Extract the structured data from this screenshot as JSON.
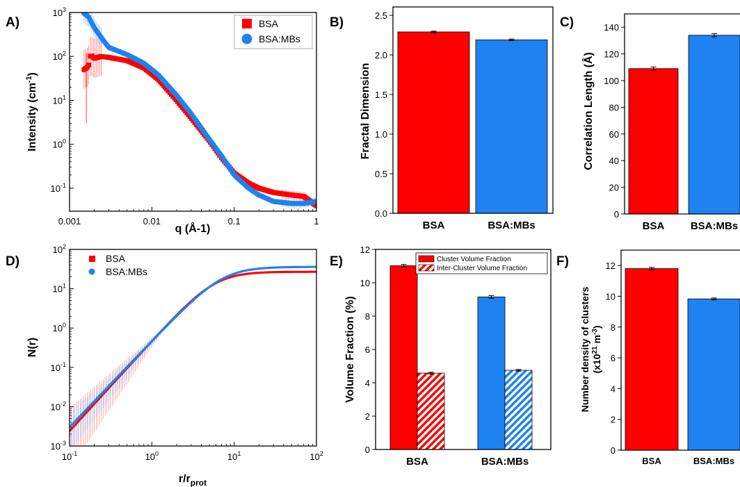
{
  "colors": {
    "bsa": "#ff0000",
    "mbs": "#1e82f0",
    "axis": "#000000"
  },
  "chart_data": [
    {
      "panel": "A)",
      "type": "scatter",
      "xlabel": "q (Å-1)",
      "ylabel_main": "Intensity (cm",
      "ylabel_sup": "-1",
      "ylabel_end": ")",
      "xscale": "log",
      "yscale": "log",
      "xlim": [
        0.001,
        1
      ],
      "ylim": [
        0.03,
        1000
      ],
      "xticks": [
        {
          "v": 0.001,
          "t": "0.001"
        },
        {
          "v": 0.01,
          "t": "0.01"
        },
        {
          "v": 0.1,
          "t": "0.1"
        },
        {
          "v": 1,
          "t": "1"
        }
      ],
      "yticks": [
        {
          "v": 0.1,
          "b": "10",
          "e": "-1"
        },
        {
          "v": 1,
          "b": "10",
          "e": "0"
        },
        {
          "v": 10,
          "b": "10",
          "e": "1"
        },
        {
          "v": 100,
          "b": "10",
          "e": "2"
        },
        {
          "v": 1000,
          "b": "10",
          "e": "3"
        }
      ],
      "legend": "top-right",
      "series": [
        {
          "name": "BSA",
          "marker": "square",
          "color": "#ff0000",
          "x": [
            0.0015,
            0.0017,
            0.0018,
            0.002,
            0.0024,
            0.003,
            0.005,
            0.008,
            0.012,
            0.02,
            0.03,
            0.05,
            0.07,
            0.1,
            0.15,
            0.2,
            0.3,
            0.5,
            0.7,
            1.0
          ],
          "y": [
            50,
            60,
            110,
            90,
            100,
            95,
            80,
            55,
            30,
            10,
            4,
            1.2,
            0.5,
            0.22,
            0.13,
            0.1,
            0.08,
            0.07,
            0.065,
            0.04
          ]
        },
        {
          "name": "BSA:MBs",
          "marker": "circle",
          "color": "#1e82f0",
          "x": [
            0.0015,
            0.0017,
            0.002,
            0.0025,
            0.003,
            0.005,
            0.008,
            0.012,
            0.02,
            0.03,
            0.05,
            0.07,
            0.1,
            0.15,
            0.2,
            0.3,
            0.5,
            0.7,
            1.0
          ],
          "y": [
            950,
            800,
            450,
            250,
            160,
            110,
            70,
            38,
            13,
            5,
            1.3,
            0.55,
            0.2,
            0.1,
            0.07,
            0.05,
            0.045,
            0.045,
            0.05
          ]
        }
      ]
    },
    {
      "panel": "B)",
      "type": "bar",
      "categories": [
        "BSA",
        "BSA:MBs"
      ],
      "values": [
        2.29,
        2.19
      ],
      "errors": [
        0.01,
        0.01
      ],
      "ylabel": "Fractal Dimension",
      "ylim": [
        0,
        2.5
      ],
      "yticks": [
        "0.0",
        "0.5",
        "1.0",
        "1.5",
        "2.0",
        "2.5"
      ]
    },
    {
      "panel": "C)",
      "type": "bar",
      "categories": [
        "BSA",
        "BSA:MBs"
      ],
      "values": [
        109,
        134
      ],
      "errors": [
        1.2,
        1.2
      ],
      "ylabel": "Correlation Length (Å)",
      "ylim": [
        0,
        150
      ],
      "yticks": [
        "0",
        "20",
        "40",
        "60",
        "80",
        "100",
        "120",
        "140"
      ]
    },
    {
      "panel": "D)",
      "type": "line",
      "xlabel_main": "r/r",
      "xlabel_sub": "prot",
      "ylabel": "N(r)",
      "xscale": "log",
      "yscale": "log",
      "xlim": [
        0.1,
        100
      ],
      "ylim": [
        0.001,
        100
      ],
      "xticks": [
        {
          "v": 0.1,
          "b": "10",
          "e": "-1"
        },
        {
          "v": 1,
          "b": "10",
          "e": "0"
        },
        {
          "v": 10,
          "b": "10",
          "e": "1"
        },
        {
          "v": 100,
          "b": "10",
          "e": "2"
        }
      ],
      "yticks": [
        {
          "v": 0.001,
          "b": "10",
          "e": "-3"
        },
        {
          "v": 0.01,
          "b": "10",
          "e": "-2"
        },
        {
          "v": 0.1,
          "b": "10",
          "e": "-1"
        },
        {
          "v": 1,
          "b": "10",
          "e": "0"
        },
        {
          "v": 10,
          "b": "10",
          "e": "1"
        },
        {
          "v": 100,
          "b": "10",
          "e": "2"
        }
      ],
      "legend": "top-left",
      "series": [
        {
          "name": "BSA",
          "color": "#ff0000",
          "plateau": 27,
          "ndim": 2.29,
          "rc": 7.0
        },
        {
          "name": "BSA:MBs",
          "color": "#1e82f0",
          "plateau": 36,
          "ndim": 2.19,
          "rc": 8.5
        }
      ]
    },
    {
      "panel": "E)",
      "type": "bar",
      "categories": [
        "BSA",
        "BSA:MBs"
      ],
      "series": [
        {
          "name": "Cluster Volume Fraction",
          "values": [
            11.02,
            9.15
          ],
          "errors": [
            0.08,
            0.08
          ],
          "pattern": "solid"
        },
        {
          "name": "Inter-Cluster Volume Fraction",
          "values": [
            4.58,
            4.75
          ],
          "errors": [
            0.05,
            0.05
          ],
          "pattern": "hatched"
        }
      ],
      "ylabel": "Volume Fraction (%)",
      "ylim": [
        0,
        12
      ],
      "yticks": [
        "0",
        "2",
        "4",
        "6",
        "8",
        "10",
        "12"
      ],
      "legend": "top-right"
    },
    {
      "panel": "F)",
      "type": "bar",
      "categories": [
        "BSA",
        "BSA:MBs"
      ],
      "values": [
        11.8,
        9.83
      ],
      "errors": [
        0.08,
        0.06
      ],
      "ylabel_line1": "Number density of clusters",
      "ylabel_line2_a": "(x10",
      "ylabel_line2_sup1": "21",
      "ylabel_line2_b": " m",
      "ylabel_line2_sup2": "-3",
      "ylabel_line2_c": ")",
      "ylim": [
        0,
        13
      ],
      "yticks": [
        "0",
        "2",
        "4",
        "6",
        "8",
        "10",
        "12"
      ]
    }
  ]
}
